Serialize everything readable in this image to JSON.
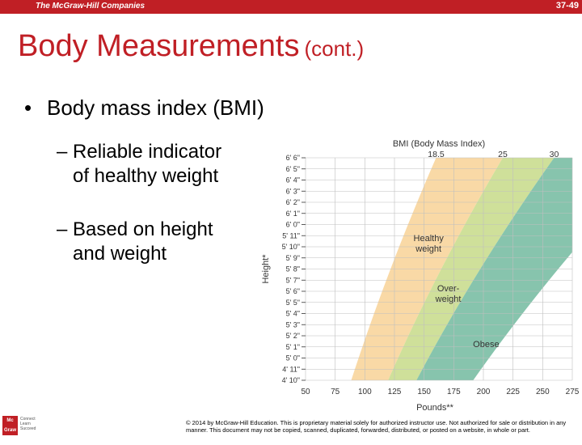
{
  "header": {
    "brand": "The McGraw-Hill Companies",
    "slide_number": "37-49",
    "bar_color": "#c01f25"
  },
  "slide": {
    "title_main": "Body Measurements",
    "title_sub": "(cont.)",
    "bullet": "Body mass index (BMI)",
    "subbullets": [
      {
        "line1": "– Reliable indicator",
        "line2": "of healthy weight"
      },
      {
        "line1": "– Based on height",
        "line2": "and weight"
      }
    ]
  },
  "footer": {
    "logo_text": "Mc Graw Hill",
    "logo_subtext": "Connect Learn Succeed",
    "copyright": "© 2014 by McGraw-Hill Education. This is proprietary material solely for authorized instructor use. Not authorized for sale or distribution in any manner. This document may not be copied, scanned, duplicated, forwarded, distributed, or posted on a website, in whole or part."
  },
  "chart_data": {
    "type": "area",
    "title": "BMI (Body Mass Index)",
    "xlabel": "Pounds**",
    "ylabel": "Height*",
    "x_ticks": [
      "50",
      "75",
      "100",
      "125",
      "150",
      "175",
      "200",
      "225",
      "250",
      "275"
    ],
    "xlim": [
      50,
      275
    ],
    "height_ticks": [
      "4' 10\"",
      "4' 11\"",
      "5' 0\"",
      "5' 1\"",
      "5' 2\"",
      "5' 3\"",
      "5' 4\"",
      "5' 5\"",
      "5' 6\"",
      "5' 7\"",
      "5' 8\"",
      "5' 9\"",
      "5' 10\"",
      "5' 11\"",
      "6' 0\"",
      "6' 1\"",
      "6' 2\"",
      "6' 3\"",
      "6' 4\"",
      "6' 5\"",
      "6' 6\""
    ],
    "height_inches": [
      58,
      59,
      60,
      61,
      62,
      63,
      64,
      65,
      66,
      67,
      68,
      69,
      70,
      71,
      72,
      73,
      74,
      75,
      76,
      77,
      78
    ],
    "ylim_inches": [
      58,
      78
    ],
    "bmi_thresholds": [
      "18.5",
      "25",
      "30"
    ],
    "zones": [
      {
        "name": "Healthy weight",
        "label_line1": "Healthy",
        "label_line2": "weight",
        "bmi_range": [
          18.5,
          25
        ],
        "color": "#f9d9a6"
      },
      {
        "name": "Overweight",
        "label_line1": "Over-",
        "label_line2": "weight",
        "bmi_range": [
          25,
          30
        ],
        "color": "#cfe09a"
      },
      {
        "name": "Obese",
        "label_line1": "Obese",
        "label_line2": "",
        "bmi_range": [
          30,
          40
        ],
        "color": "#87c4ad"
      }
    ],
    "underweight_color": "#ffffff",
    "grid": true
  }
}
